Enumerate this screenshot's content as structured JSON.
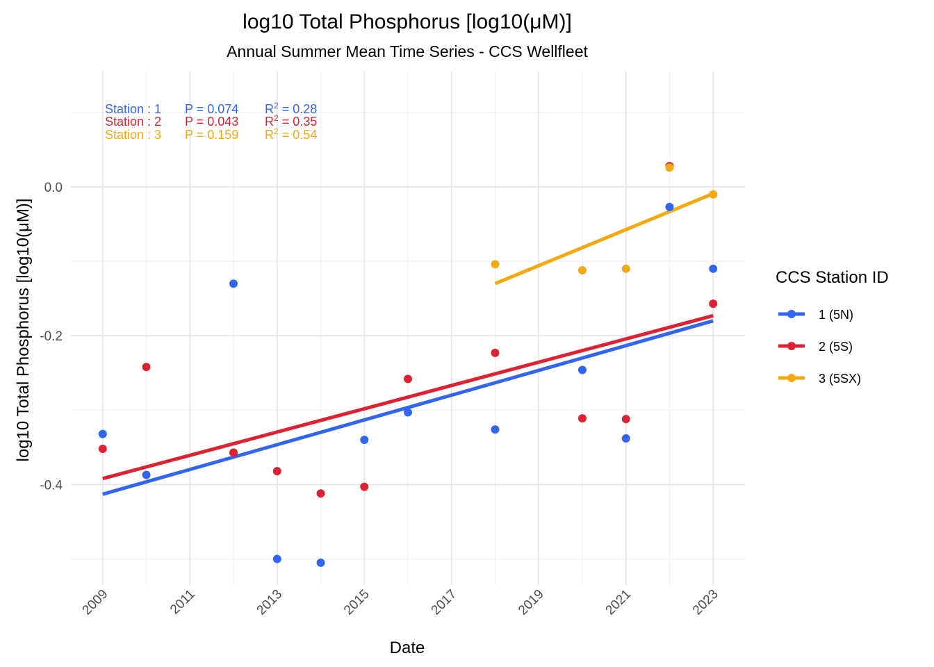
{
  "chart_data": {
    "type": "scatter",
    "title": "log10 Total Phosphorus [log10(μM)]",
    "subtitle": "Annual Summer Mean Time Series - CCS Wellfleet",
    "xlabel": "Date",
    "ylabel": "log10 Total Phosphorus [log10(μM)]",
    "xlim": [
      2008.27,
      2023.73
    ],
    "ylim": [
      -0.535,
      0.155
    ],
    "x_ticks": [
      2009,
      2011,
      2013,
      2015,
      2017,
      2019,
      2021,
      2023
    ],
    "x_tick_labels": [
      "2009",
      "2011",
      "2013",
      "2015",
      "2017",
      "2019",
      "2021",
      "2023"
    ],
    "y_ticks": [
      -0.4,
      -0.2,
      0.0
    ],
    "y_tick_labels": [
      "-0.4",
      "-0.2",
      "0.0"
    ],
    "grid": true,
    "legend": {
      "title": "CCS Station ID",
      "position": "right"
    },
    "series": [
      {
        "name": "1 (5N)",
        "color": "#3366ee",
        "x": [
          2009,
          2010,
          2012,
          2013,
          2014,
          2015,
          2016,
          2018,
          2020,
          2021,
          2022,
          2023
        ],
        "y": [
          -0.332,
          -0.387,
          -0.13,
          -0.5,
          -0.505,
          -0.34,
          -0.303,
          -0.326,
          -0.246,
          -0.338,
          -0.027,
          -0.11
        ],
        "trend": {
          "x": [
            2009,
            2023
          ],
          "y": [
            -0.413,
            -0.18
          ]
        }
      },
      {
        "name": "2 (5S)",
        "color": "#dd2233",
        "x": [
          2009,
          2010,
          2012,
          2013,
          2014,
          2015,
          2016,
          2018,
          2020,
          2021,
          2022,
          2023
        ],
        "y": [
          -0.352,
          -0.242,
          -0.357,
          -0.382,
          -0.412,
          -0.403,
          -0.258,
          -0.223,
          -0.311,
          -0.312,
          0.028,
          -0.157
        ],
        "trend": {
          "x": [
            2009,
            2023
          ],
          "y": [
            -0.392,
            -0.173
          ]
        }
      },
      {
        "name": "3 (5SX)",
        "color": "#f5a911",
        "x": [
          2018,
          2020,
          2021,
          2022,
          2023
        ],
        "y": [
          -0.104,
          -0.112,
          -0.11,
          0.026,
          -0.01
        ],
        "trend": {
          "x": [
            2018,
            2023
          ],
          "y": [
            -0.13,
            -0.009
          ]
        }
      }
    ],
    "annotations": [
      {
        "station": "Station : 1",
        "p": "P = 0.074",
        "r2_base": "R",
        "r2_sup": "2",
        "r2_value": " = 0.28",
        "color": "#3366ee"
      },
      {
        "station": "Station : 2",
        "p": "P = 0.043",
        "r2_base": "R",
        "r2_sup": "2",
        "r2_value": " = 0.35",
        "color": "#dd2233"
      },
      {
        "station": "Station : 3",
        "p": "P = 0.159",
        "r2_base": "R",
        "r2_sup": "2",
        "r2_value": " = 0.54",
        "color": "#f5a911"
      }
    ]
  }
}
